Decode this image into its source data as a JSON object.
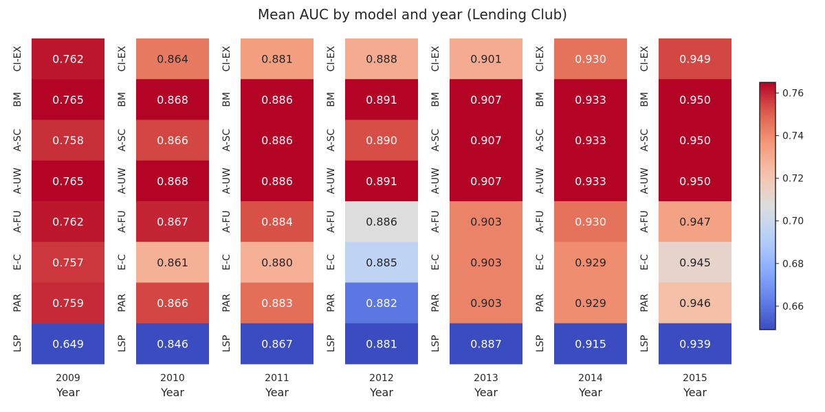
{
  "chart_data": {
    "type": "heatmap",
    "title": "Mean AUC by model and year (Lending Club)",
    "xlabel": "Year",
    "ylabel": "",
    "rows": [
      "CI-EX",
      "BM",
      "A-SC",
      "A-UW",
      "A-FU",
      "E-C",
      "PAR",
      "LSP"
    ],
    "panels": [
      {
        "year": "2009",
        "values": [
          0.762,
          0.765,
          0.758,
          0.765,
          0.762,
          0.757,
          0.759,
          0.649
        ]
      },
      {
        "year": "2010",
        "values": [
          0.864,
          0.868,
          0.866,
          0.868,
          0.867,
          0.861,
          0.866,
          0.846
        ]
      },
      {
        "year": "2011",
        "values": [
          0.881,
          0.886,
          0.886,
          0.886,
          0.884,
          0.88,
          0.883,
          0.867
        ]
      },
      {
        "year": "2012",
        "values": [
          0.888,
          0.891,
          0.89,
          0.891,
          0.886,
          0.885,
          0.882,
          0.881
        ]
      },
      {
        "year": "2013",
        "values": [
          0.901,
          0.907,
          0.907,
          0.907,
          0.903,
          0.903,
          0.903,
          0.887
        ]
      },
      {
        "year": "2014",
        "values": [
          0.93,
          0.933,
          0.933,
          0.933,
          0.93,
          0.929,
          0.929,
          0.915
        ]
      },
      {
        "year": "2015",
        "values": [
          0.949,
          0.95,
          0.95,
          0.95,
          0.947,
          0.945,
          0.946,
          0.939
        ]
      }
    ],
    "colormap": "coolwarm",
    "colorbar": {
      "range": [
        0.649,
        0.765
      ],
      "ticks": [
        "0.66",
        "0.68",
        "0.70",
        "0.72",
        "0.74",
        "0.76"
      ],
      "tick_values": [
        0.66,
        0.68,
        0.7,
        0.72,
        0.74,
        0.76
      ],
      "placement": "right"
    },
    "grid": false
  }
}
